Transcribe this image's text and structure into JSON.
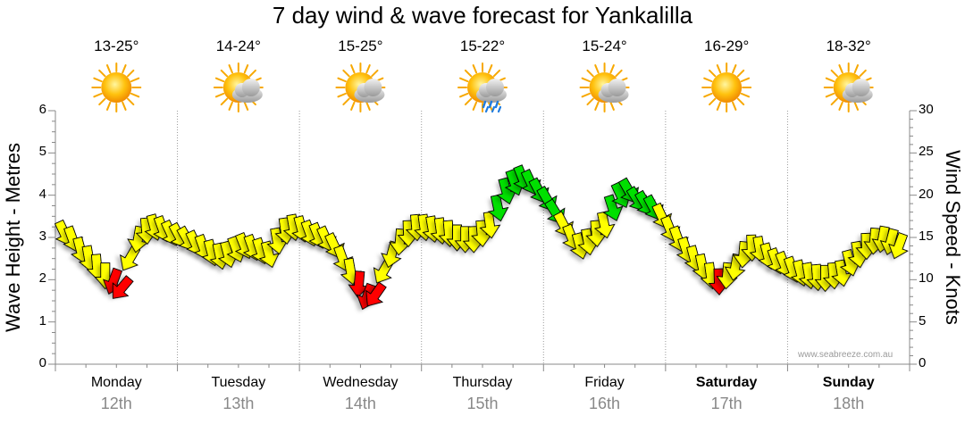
{
  "chart_data": {
    "type": "scatter",
    "title": "7 day wind & wave forecast for Yankalilla",
    "ylabel_left": "Wave Height - Metres",
    "ylabel_right": "Wind Speed - Knots",
    "ylim_left": [
      0,
      6
    ],
    "ylim_right": [
      0,
      30
    ],
    "yticks_left": [
      "0",
      "1",
      "2",
      "3",
      "4",
      "5",
      "6"
    ],
    "yticks_right": [
      "0",
      "5",
      "10",
      "15",
      "20",
      "25",
      "30"
    ],
    "grid": true,
    "credit": "www.seabreeze.com.au",
    "days": [
      {
        "day": "Monday",
        "date": "12th",
        "temp": "13-25°",
        "weather": "sunny-icon",
        "bold": false
      },
      {
        "day": "Tuesday",
        "date": "13th",
        "temp": "14-24°",
        "weather": "partly-cloudy-icon",
        "bold": false
      },
      {
        "day": "Wednesday",
        "date": "14th",
        "temp": "15-25°",
        "weather": "partly-cloudy-icon",
        "bold": false
      },
      {
        "day": "Thursday",
        "date": "15th",
        "temp": "15-22°",
        "weather": "showers-icon",
        "bold": false
      },
      {
        "day": "Friday",
        "date": "16th",
        "temp": "15-24°",
        "weather": "partly-cloudy-icon",
        "bold": false
      },
      {
        "day": "Saturday",
        "date": "17th",
        "temp": "16-29°",
        "weather": "sunny-icon",
        "bold": true
      },
      {
        "day": "Sunday",
        "date": "18th",
        "temp": "18-32°",
        "weather": "partly-cloudy-icon",
        "bold": true
      }
    ],
    "wind_series_knots": [
      15.5,
      14.8,
      13.5,
      12.5,
      11.5,
      10.5,
      9.8,
      9.0,
      12.5,
      14.8,
      15.8,
      16.2,
      16.0,
      15.5,
      15.2,
      14.8,
      14.3,
      13.8,
      13.2,
      12.8,
      13.0,
      13.6,
      14.0,
      13.8,
      13.4,
      13.0,
      14.6,
      15.8,
      16.2,
      16.0,
      15.5,
      15.2,
      14.8,
      14.0,
      12.5,
      11.0,
      9.5,
      8.0,
      8.2,
      11.0,
      13.0,
      14.5,
      15.5,
      16.2,
      16.2,
      16.0,
      15.8,
      15.5,
      15.0,
      14.8,
      14.8,
      15.5,
      16.5,
      18.5,
      20.5,
      21.5,
      22.0,
      21.5,
      20.5,
      19.5,
      18.0,
      16.5,
      15.0,
      14.0,
      14.5,
      15.5,
      16.5,
      18.5,
      20.0,
      20.5,
      19.5,
      19.0,
      18.5,
      17.5,
      16.0,
      14.8,
      13.5,
      12.5,
      11.5,
      10.5,
      9.8,
      10.5,
      11.5,
      13.0,
      13.8,
      13.6,
      12.8,
      12.2,
      11.8,
      11.2,
      10.8,
      10.5,
      10.3,
      10.2,
      10.5,
      10.8,
      12.0,
      13.0,
      14.0,
      14.6,
      14.8,
      14.5,
      14.0
    ],
    "wind_dir_deg": [
      155,
      160,
      165,
      170,
      175,
      180,
      200,
      220,
      210,
      190,
      175,
      165,
      160,
      155,
      152,
      150,
      155,
      160,
      165,
      168,
      165,
      160,
      158,
      160,
      162,
      165,
      170,
      172,
      170,
      165,
      160,
      158,
      156,
      155,
      160,
      170,
      185,
      200,
      215,
      210,
      195,
      185,
      178,
      175,
      172,
      170,
      172,
      175,
      180,
      180,
      178,
      175,
      172,
      168,
      165,
      160,
      158,
      155,
      152,
      150,
      148,
      152,
      158,
      165,
      170,
      175,
      168,
      162,
      155,
      150,
      148,
      150,
      152,
      155,
      158,
      160,
      162,
      165,
      168,
      172,
      178,
      185,
      190,
      185,
      178,
      170,
      165,
      160,
      158,
      160,
      165,
      170,
      175,
      180,
      175,
      170,
      165,
      170,
      178,
      185,
      190,
      195,
      200
    ],
    "wind_color_stops": [
      {
        "from": 0,
        "to": 10,
        "color": "#ff0000"
      },
      {
        "from": 10,
        "to": 18,
        "color": "#ffff00"
      },
      {
        "from": 18,
        "to": 30,
        "color": "#00e000"
      }
    ],
    "day_segments": [
      {
        "start": 0,
        "end": 13
      },
      {
        "start": 13,
        "end": 26
      },
      {
        "start": 26,
        "end": 39
      },
      {
        "start": 39,
        "end": 52
      },
      {
        "start": 52,
        "end": 65
      },
      {
        "start": 65,
        "end": 78
      },
      {
        "start": 78,
        "end": 103
      }
    ]
  }
}
